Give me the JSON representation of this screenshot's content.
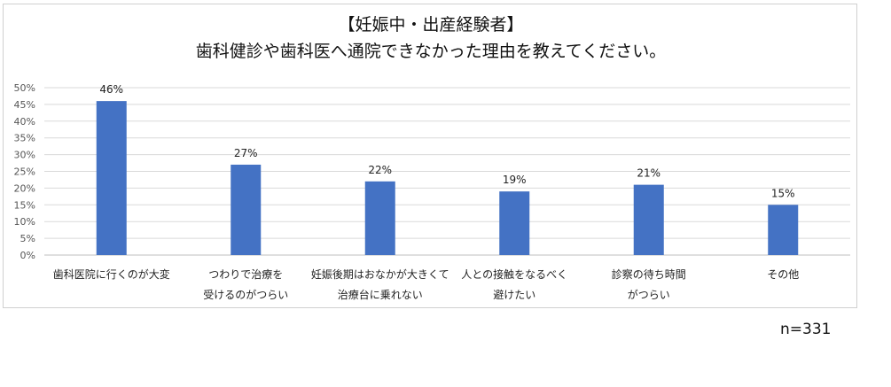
{
  "chart_data": {
    "type": "bar",
    "title_lines": [
      "【妊娠中・出産経験者】",
      "歯科健診や歯科医へ通院できなかった理由を教えてください。"
    ],
    "categories": [
      [
        "歯科医院に行くのが大変"
      ],
      [
        "つわりで治療を",
        "受けるのがつらい"
      ],
      [
        "妊娠後期はおなかが大きくて",
        "治療台に乗れない"
      ],
      [
        "人との接触をなるべく",
        "避けたい"
      ],
      [
        "診察の待ち時間",
        "がつらい"
      ],
      [
        "その他"
      ]
    ],
    "values": [
      46,
      27,
      22,
      19,
      21,
      15
    ],
    "data_labels": [
      "46%",
      "27%",
      "22%",
      "19%",
      "21%",
      "15%"
    ],
    "y_ticks": [
      "0%",
      "5%",
      "10%",
      "15%",
      "20%",
      "25%",
      "30%",
      "35%",
      "40%",
      "45%",
      "50%"
    ],
    "ylim": [
      0,
      50
    ],
    "grid": true,
    "bar_color": "#4472C4",
    "xlabel": "",
    "ylabel": ""
  },
  "footer": {
    "sample_size": "n=331"
  }
}
